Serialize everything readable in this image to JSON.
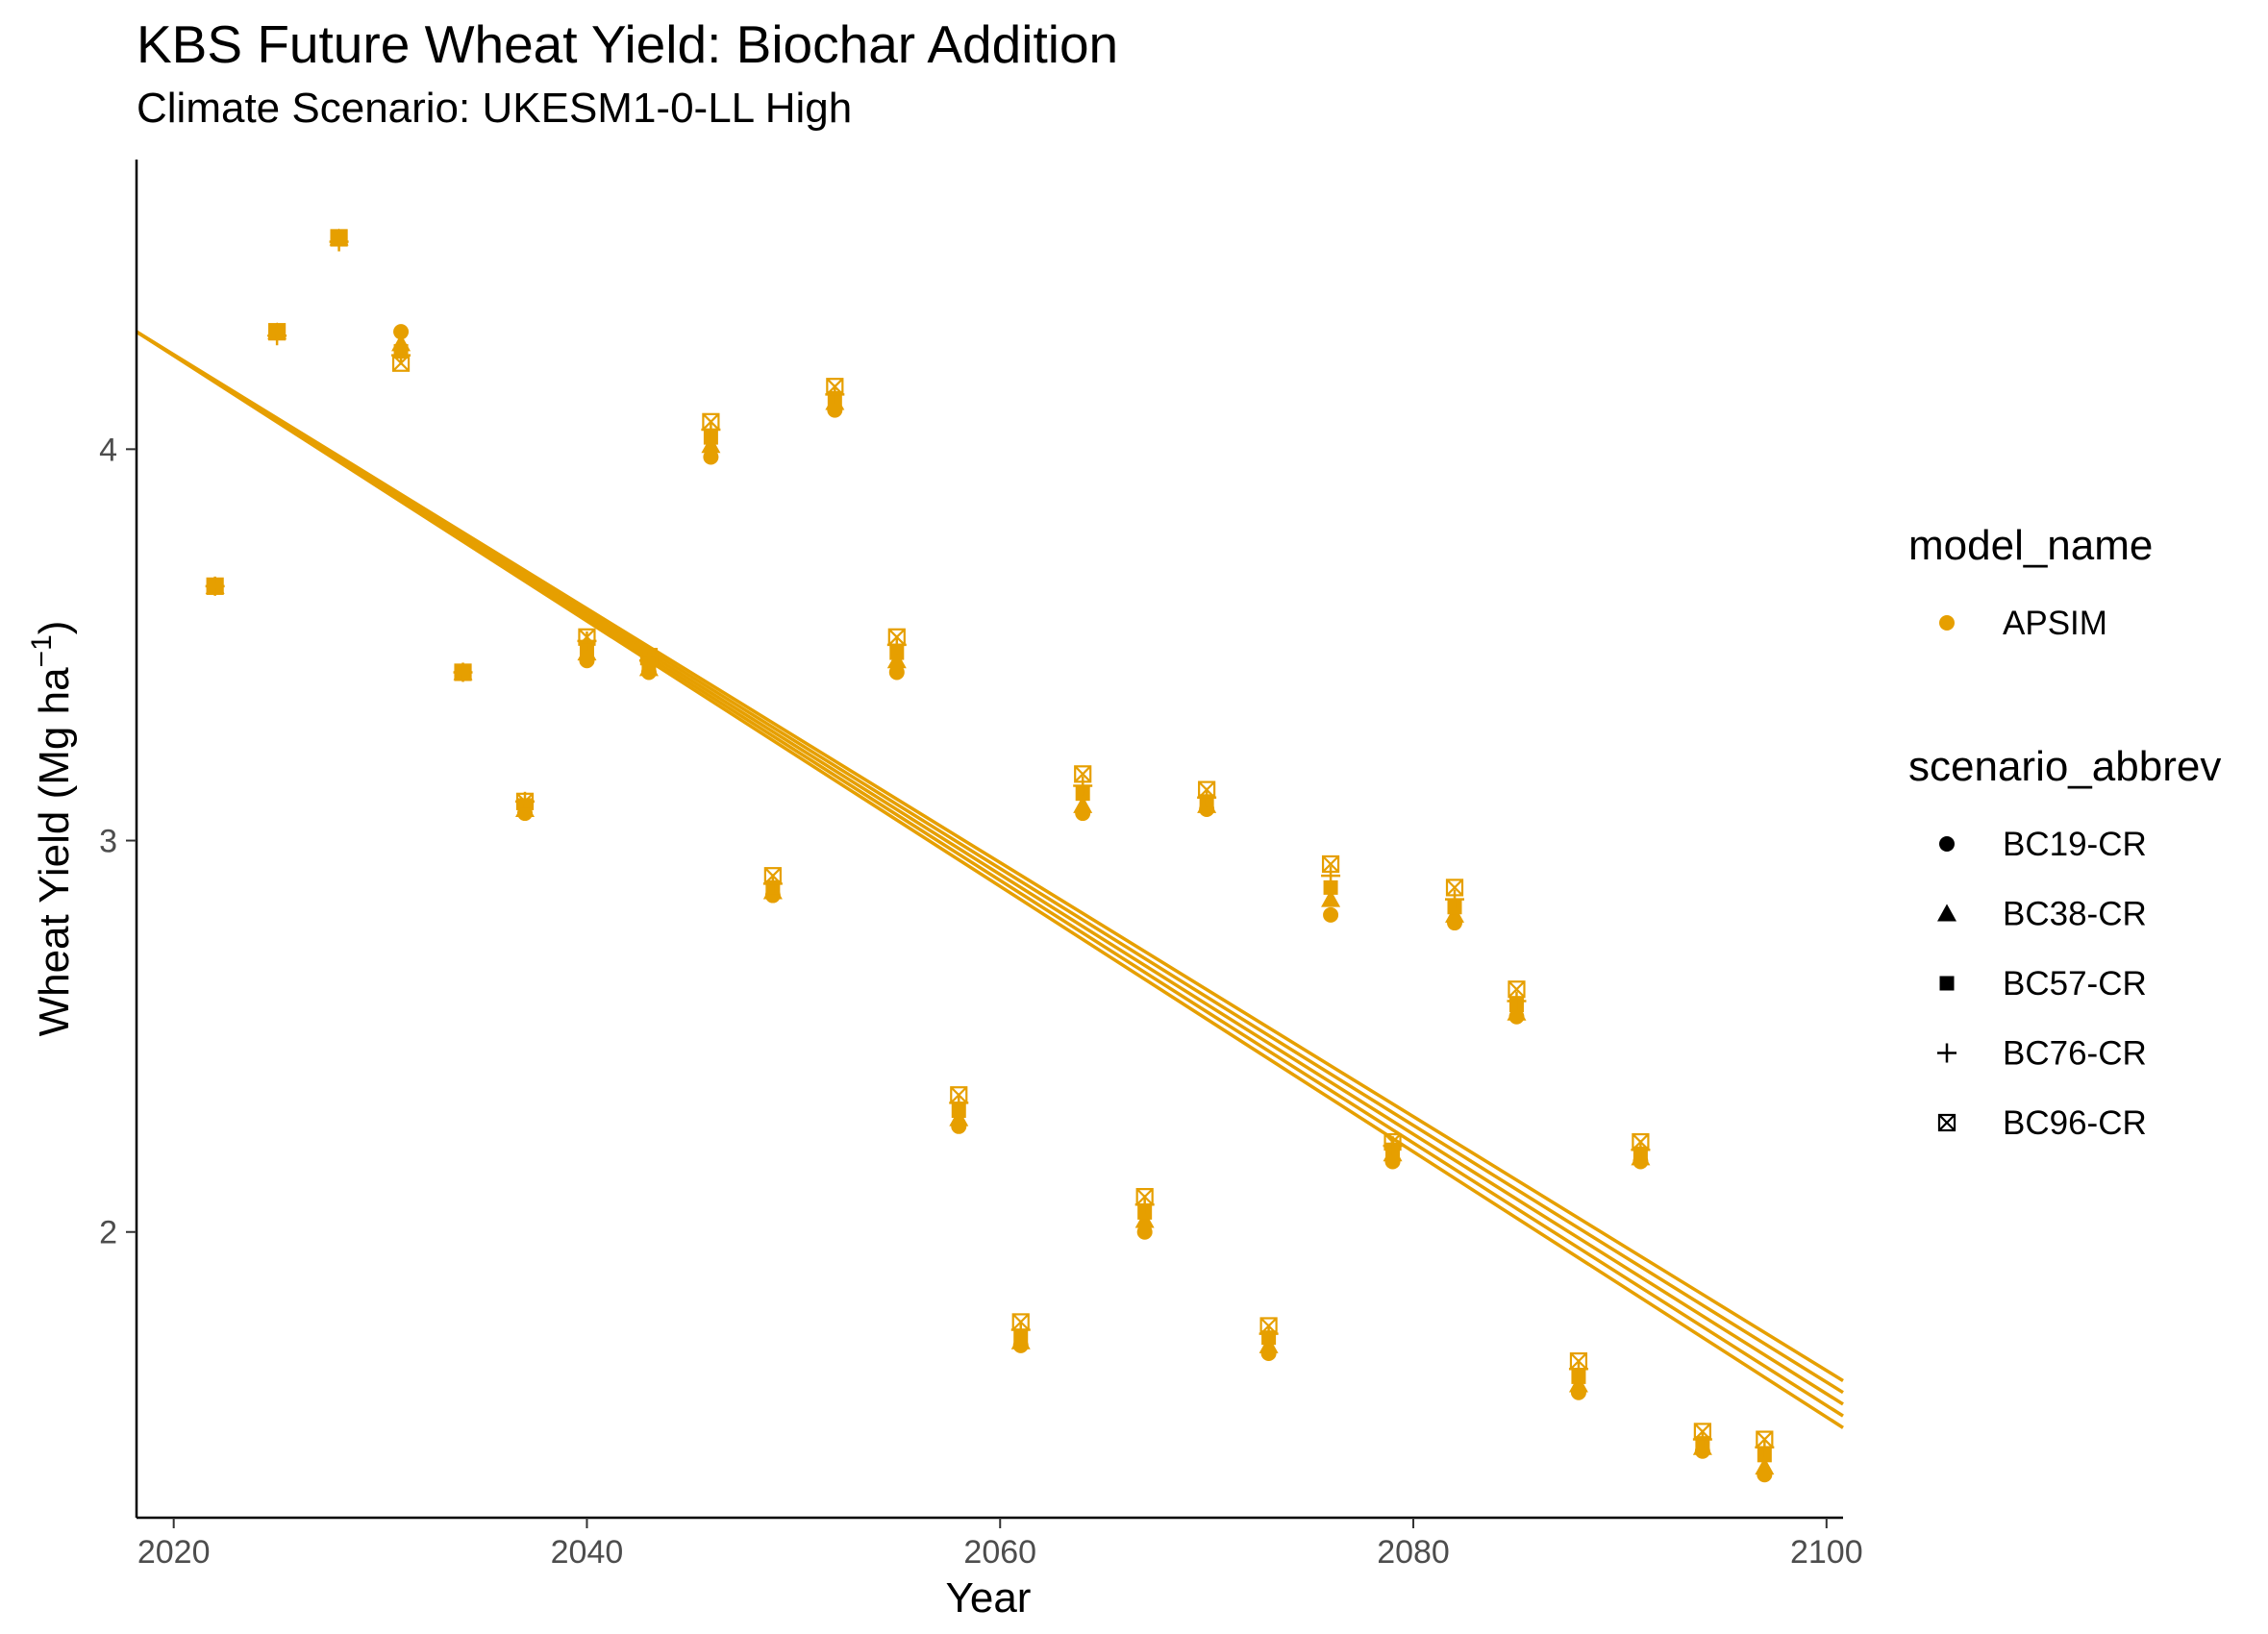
{
  "chart_data": {
    "type": "scatter",
    "title": "KBS Future Wheat Yield: Biochar Addition",
    "subtitle": "Climate Scenario: UKESM1-0-LL High",
    "xlabel": "Year",
    "ylabel": "Wheat Yield (Mg ha",
    "ylabel_sup": "−1",
    "ylabel_close": ")",
    "xlim": [
      2018.2,
      2100.8
    ],
    "ylim": [
      1.27,
      4.74
    ],
    "xticks": [
      2020,
      2040,
      2060,
      2080,
      2100
    ],
    "yticks": [
      2,
      3,
      4
    ],
    "grid": false,
    "color": "#E69F00",
    "legend_placement": "right",
    "legend_color": {
      "title": "model_name",
      "entries": [
        {
          "label": "APSIM",
          "color": "#E69F00"
        }
      ]
    },
    "legend_shape": {
      "title": "scenario_abbrev",
      "entries": [
        {
          "label": "BC19-CR",
          "shape": "circle"
        },
        {
          "label": "BC38-CR",
          "shape": "triangle"
        },
        {
          "label": "BC57-CR",
          "shape": "square"
        },
        {
          "label": "BC76-CR",
          "shape": "plus"
        },
        {
          "label": "BC96-CR",
          "shape": "boxed-x"
        }
      ]
    },
    "x": [
      2022,
      2025,
      2028,
      2031,
      2034,
      2037,
      2040,
      2043,
      2046,
      2049,
      2052,
      2055,
      2058,
      2061,
      2064,
      2067,
      2070,
      2073,
      2076,
      2079,
      2082,
      2085,
      2088,
      2091,
      2094,
      2097
    ],
    "series": [
      {
        "name": "BC19-CR",
        "shape": "circle",
        "values": [
          3.65,
          4.3,
          4.54,
          4.3,
          3.43,
          3.07,
          3.46,
          3.43,
          3.98,
          2.86,
          4.1,
          3.43,
          2.27,
          1.71,
          3.07,
          2.0,
          3.08,
          1.69,
          2.81,
          2.18,
          2.79,
          2.55,
          1.59,
          2.18,
          1.44,
          1.38
        ]
      },
      {
        "name": "BC38-CR",
        "shape": "triangle",
        "values": [
          3.65,
          4.3,
          4.54,
          4.27,
          3.43,
          3.08,
          3.48,
          3.44,
          4.01,
          2.87,
          4.12,
          3.46,
          2.29,
          1.72,
          3.09,
          2.03,
          3.09,
          1.71,
          2.85,
          2.2,
          2.81,
          2.56,
          1.61,
          2.19,
          1.45,
          1.4
        ]
      },
      {
        "name": "BC57-CR",
        "shape": "square",
        "values": [
          3.65,
          4.3,
          4.54,
          4.25,
          3.43,
          3.09,
          3.49,
          3.45,
          4.03,
          2.88,
          4.13,
          3.48,
          2.31,
          1.73,
          3.12,
          2.05,
          3.1,
          1.73,
          2.88,
          2.21,
          2.83,
          2.58,
          1.63,
          2.2,
          1.46,
          1.43
        ]
      },
      {
        "name": "BC76-CR",
        "shape": "plus",
        "values": [
          3.65,
          4.29,
          4.53,
          4.24,
          3.43,
          3.1,
          3.51,
          3.46,
          4.05,
          2.89,
          4.14,
          3.5,
          2.33,
          1.75,
          3.14,
          2.07,
          3.11,
          1.74,
          2.91,
          2.22,
          2.85,
          2.59,
          1.65,
          2.21,
          1.47,
          1.45
        ]
      },
      {
        "name": "BC96-CR",
        "shape": "boxed-x",
        "values": [
          3.65,
          4.3,
          4.54,
          4.22,
          3.43,
          3.1,
          3.52,
          3.47,
          4.07,
          2.91,
          4.16,
          3.52,
          2.35,
          1.77,
          3.17,
          2.09,
          3.13,
          1.76,
          2.94,
          2.23,
          2.88,
          2.62,
          1.67,
          2.23,
          1.49,
          1.47
        ]
      }
    ],
    "trend_lines": [
      {
        "name": "BC19-CR",
        "x": [
          2018.2,
          2100.8
        ],
        "y": [
          4.3,
          1.5
        ]
      },
      {
        "name": "BC38-CR",
        "x": [
          2018.2,
          2100.8
        ],
        "y": [
          4.3,
          1.53
        ]
      },
      {
        "name": "BC57-CR",
        "x": [
          2018.2,
          2100.8
        ],
        "y": [
          4.3,
          1.56
        ]
      },
      {
        "name": "BC76-CR",
        "x": [
          2018.2,
          2100.8
        ],
        "y": [
          4.3,
          1.59
        ]
      },
      {
        "name": "BC96-CR",
        "x": [
          2018.2,
          2100.8
        ],
        "y": [
          4.3,
          1.62
        ]
      }
    ]
  }
}
